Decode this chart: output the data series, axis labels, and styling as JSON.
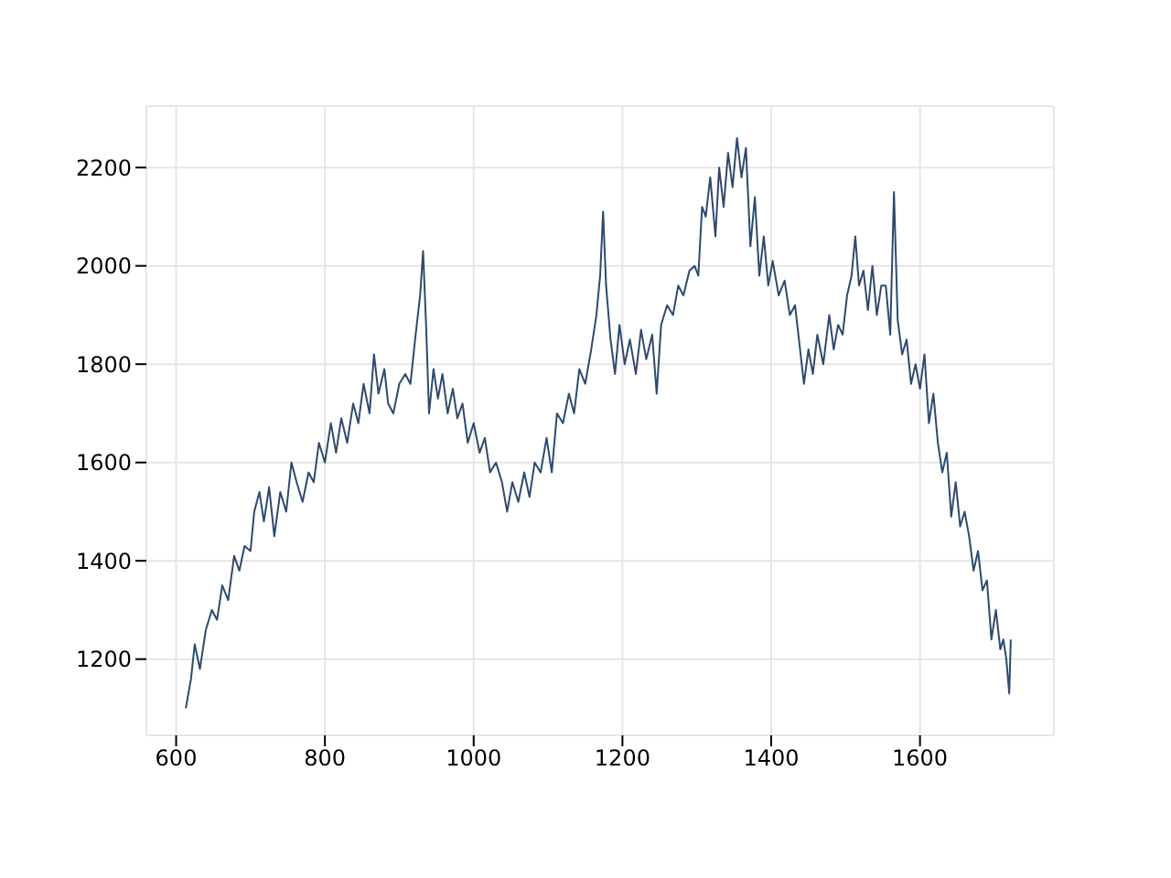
{
  "chart_data": {
    "type": "line",
    "color": "#2e4a6e",
    "grid": true,
    "xlim": [
      560,
      1780
    ],
    "ylim": [
      1045,
      2325
    ],
    "xticks": [
      600,
      800,
      1000,
      1200,
      1400,
      1600
    ],
    "yticks": [
      1200,
      1400,
      1600,
      1800,
      2000,
      2200
    ],
    "x": [
      613,
      620,
      625,
      632,
      640,
      648,
      655,
      662,
      670,
      678,
      685,
      692,
      700,
      705,
      712,
      718,
      725,
      732,
      740,
      748,
      755,
      762,
      770,
      778,
      785,
      792,
      800,
      808,
      815,
      822,
      830,
      838,
      845,
      852,
      860,
      866,
      872,
      880,
      885,
      892,
      900,
      908,
      915,
      922,
      928,
      932,
      936,
      940,
      946,
      952,
      958,
      965,
      972,
      978,
      985,
      992,
      1000,
      1008,
      1015,
      1022,
      1030,
      1038,
      1045,
      1052,
      1060,
      1068,
      1075,
      1082,
      1090,
      1098,
      1105,
      1112,
      1120,
      1128,
      1135,
      1142,
      1150,
      1158,
      1165,
      1170,
      1174,
      1178,
      1184,
      1190,
      1196,
      1203,
      1210,
      1218,
      1225,
      1232,
      1240,
      1246,
      1252,
      1260,
      1268,
      1275,
      1282,
      1290,
      1297,
      1302,
      1307,
      1312,
      1318,
      1325,
      1330,
      1336,
      1342,
      1348,
      1354,
      1360,
      1366,
      1372,
      1378,
      1384,
      1390,
      1396,
      1402,
      1410,
      1418,
      1425,
      1432,
      1438,
      1444,
      1450,
      1456,
      1462,
      1470,
      1478,
      1484,
      1490,
      1496,
      1502,
      1508,
      1513,
      1518,
      1524,
      1530,
      1536,
      1542,
      1548,
      1554,
      1560,
      1565,
      1570,
      1576,
      1582,
      1588,
      1594,
      1600,
      1606,
      1612,
      1618,
      1624,
      1630,
      1636,
      1642,
      1648,
      1654,
      1660,
      1666,
      1672,
      1678,
      1684,
      1690,
      1696,
      1702,
      1708,
      1712,
      1716,
      1720,
      1722
    ],
    "values": [
      1100,
      1160,
      1230,
      1180,
      1260,
      1300,
      1280,
      1350,
      1320,
      1410,
      1380,
      1430,
      1420,
      1500,
      1540,
      1480,
      1550,
      1450,
      1540,
      1500,
      1600,
      1560,
      1520,
      1580,
      1560,
      1640,
      1600,
      1680,
      1620,
      1690,
      1640,
      1720,
      1680,
      1760,
      1700,
      1820,
      1740,
      1790,
      1720,
      1700,
      1760,
      1780,
      1760,
      1860,
      1940,
      2030,
      1880,
      1700,
      1790,
      1730,
      1780,
      1700,
      1750,
      1690,
      1720,
      1640,
      1680,
      1620,
      1650,
      1580,
      1600,
      1560,
      1500,
      1560,
      1520,
      1580,
      1530,
      1600,
      1580,
      1650,
      1580,
      1700,
      1680,
      1740,
      1700,
      1790,
      1760,
      1830,
      1900,
      1980,
      2110,
      1960,
      1850,
      1780,
      1880,
      1800,
      1850,
      1780,
      1870,
      1810,
      1860,
      1740,
      1880,
      1920,
      1900,
      1960,
      1940,
      1990,
      2000,
      1980,
      2120,
      2100,
      2180,
      2060,
      2200,
      2120,
      2230,
      2160,
      2260,
      2180,
      2240,
      2040,
      2140,
      1980,
      2060,
      1960,
      2010,
      1940,
      1970,
      1900,
      1920,
      1840,
      1760,
      1830,
      1780,
      1860,
      1800,
      1900,
      1830,
      1880,
      1860,
      1940,
      1980,
      2060,
      1960,
      1990,
      1910,
      2000,
      1900,
      1960,
      1960,
      1860,
      2150,
      1890,
      1820,
      1850,
      1760,
      1800,
      1750,
      1820,
      1680,
      1740,
      1640,
      1580,
      1620,
      1490,
      1560,
      1470,
      1500,
      1450,
      1380,
      1420,
      1340,
      1360,
      1240,
      1300,
      1220,
      1240,
      1200,
      1130,
      1240
    ]
  }
}
